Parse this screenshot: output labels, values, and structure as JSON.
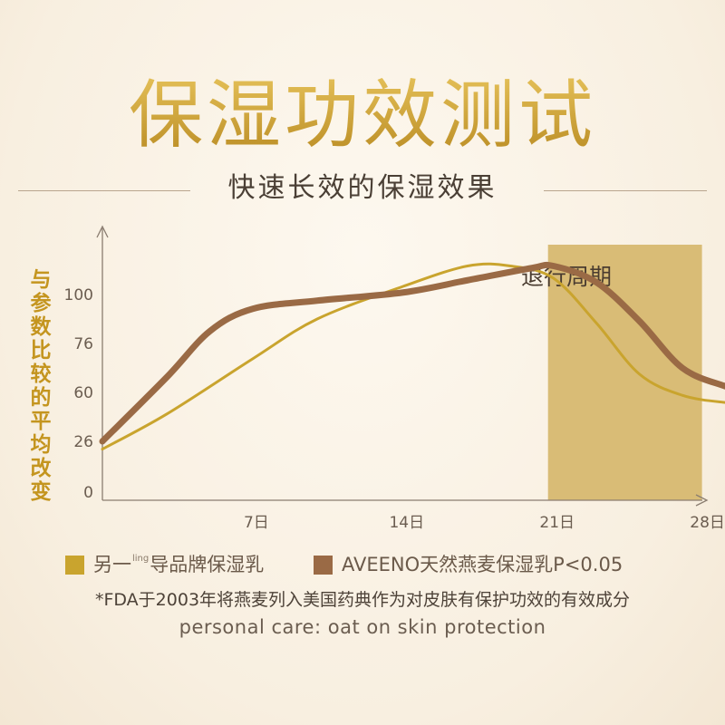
{
  "header": {
    "title": "保湿功效测试",
    "subtitle": "快速长效的保湿效果"
  },
  "colors": {
    "title_gold": "#c9a33c",
    "competitor_line": "#c9a42e",
    "aveeno_line": "#9a6a45",
    "band": "#d9bc76",
    "axis": "#8a7d70",
    "ylabel": "#c4951f"
  },
  "legend": {
    "item_a_pre": "另一",
    "item_a_sup": "ling",
    "item_a_post": "导品牌保湿乳",
    "item_b": "AVEENO天然燕麦保湿乳P<0.05"
  },
  "footnote": "*FDA于2003年将燕麦列入美国药典作为对皮肤有保护功效的有效成分",
  "footnote_en": "personal care: oat on skin protection",
  "chart_data": {
    "type": "line",
    "ylabel": "与参数比较的平均改变",
    "y_ticks": [
      "0",
      "26",
      "60",
      "76",
      "100"
    ],
    "x_ticks": [
      "7日",
      "14日",
      "21日",
      "28日"
    ],
    "band": {
      "label": "退行周期",
      "x_start": 21,
      "x_end": 28
    },
    "series": [
      {
        "name": "另一ling导品牌保湿乳",
        "color": "#c9a42e",
        "points": [
          [
            0,
            22
          ],
          [
            3,
            45
          ],
          [
            7,
            71
          ],
          [
            10,
            88
          ],
          [
            14,
            104
          ],
          [
            17,
            114
          ],
          [
            19,
            114
          ],
          [
            21,
            108
          ],
          [
            23,
            86
          ],
          [
            25,
            66
          ],
          [
            27,
            58
          ],
          [
            29,
            53
          ],
          [
            30,
            53
          ]
        ]
      },
      {
        "name": "AVEENO天然燕麦保湿乳",
        "color": "#9a6a45",
        "points": [
          [
            0,
            26
          ],
          [
            3,
            65
          ],
          [
            5,
            82
          ],
          [
            7,
            93
          ],
          [
            10,
            97
          ],
          [
            14,
            101
          ],
          [
            17,
            107
          ],
          [
            20,
            113
          ],
          [
            21,
            114
          ],
          [
            23,
            106
          ],
          [
            25,
            87
          ],
          [
            27,
            68
          ],
          [
            29,
            62
          ],
          [
            30,
            60
          ]
        ]
      }
    ]
  }
}
